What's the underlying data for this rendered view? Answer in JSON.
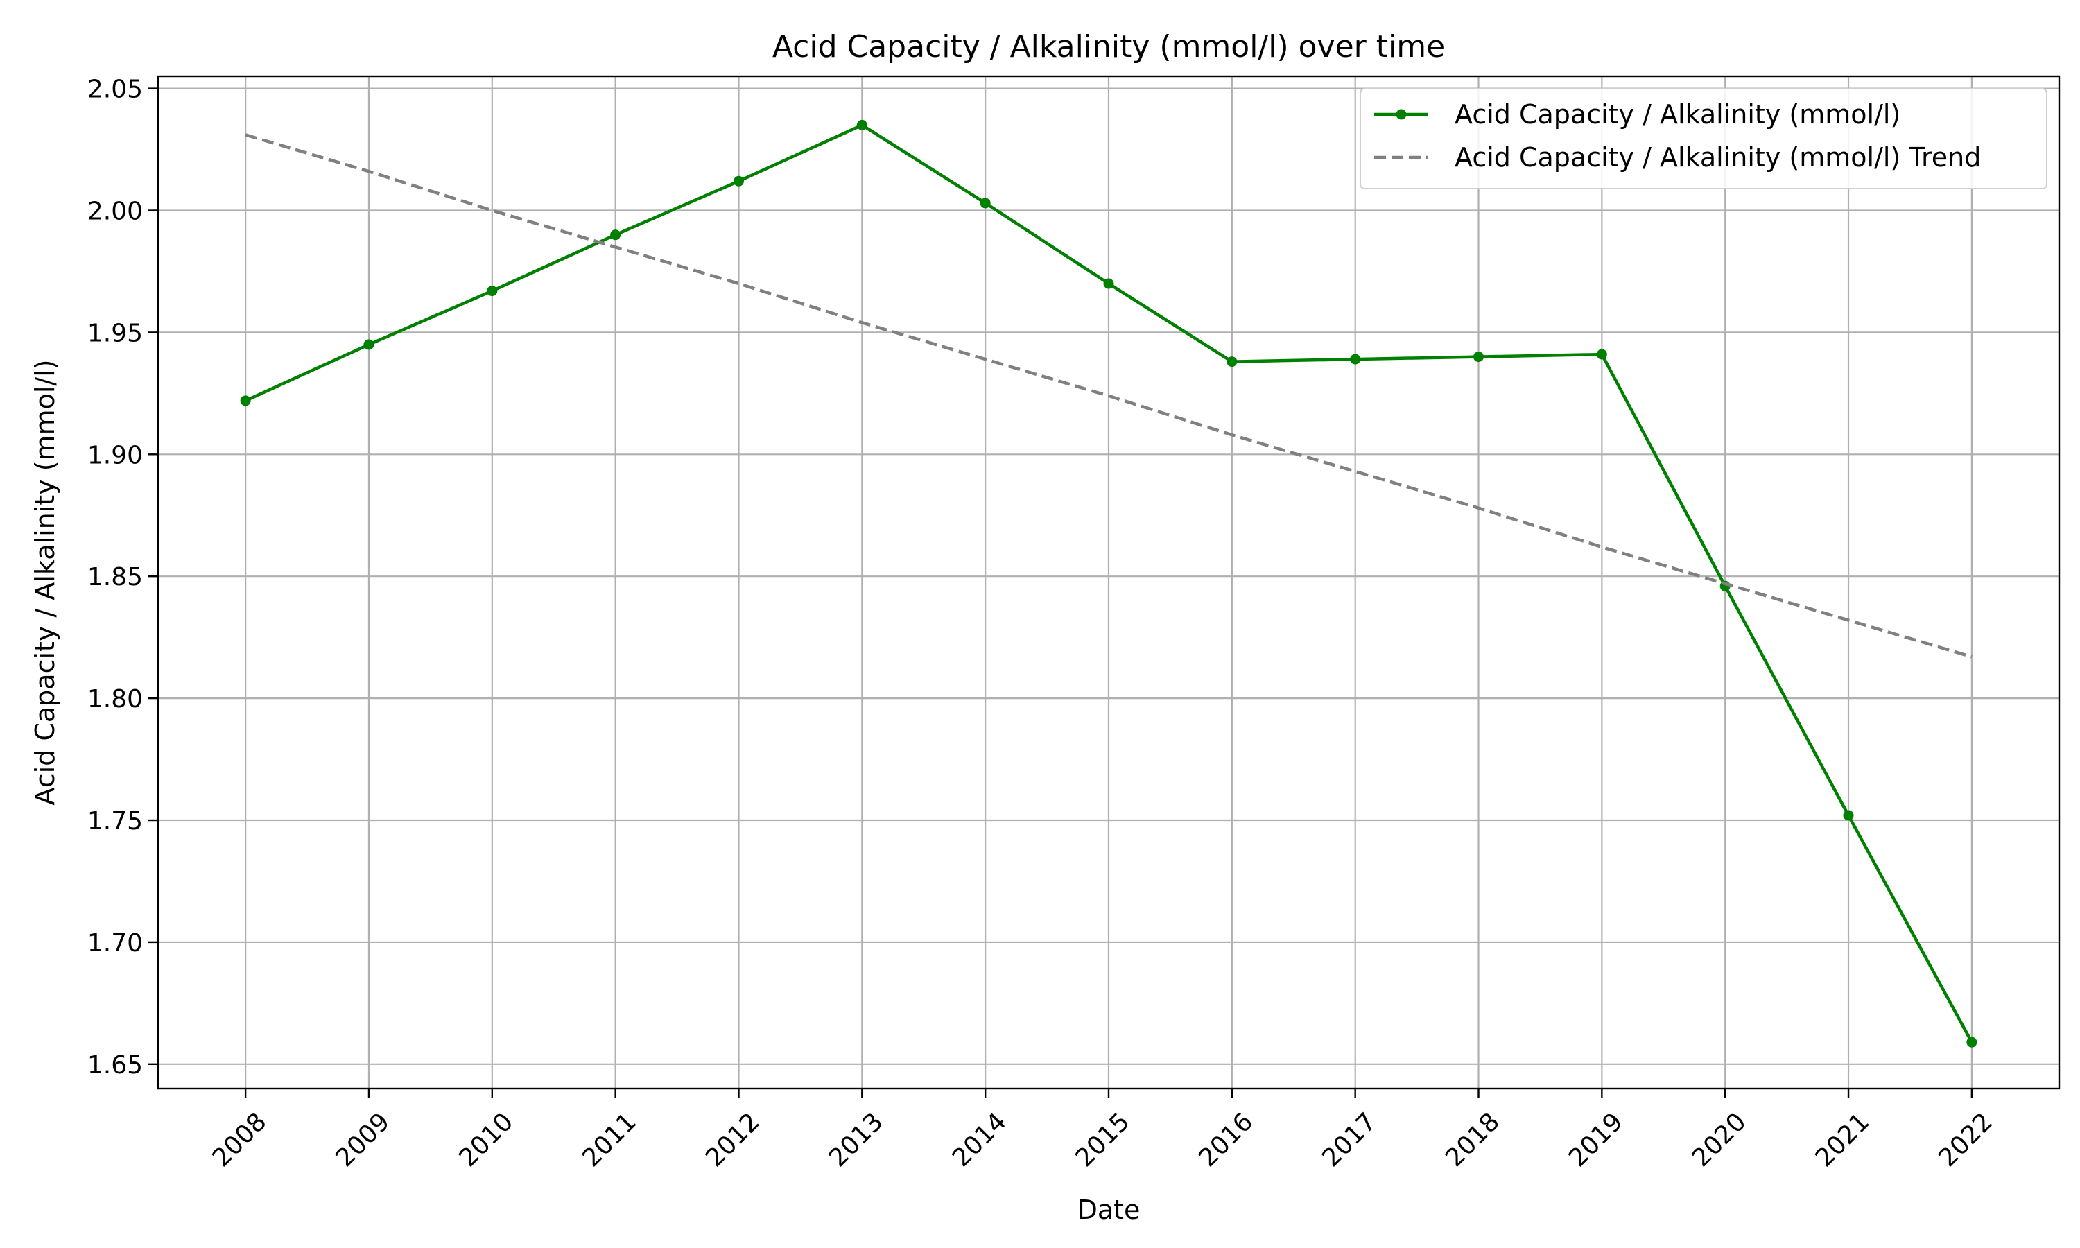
{
  "chart_data": {
    "type": "line",
    "title": "Acid Capacity / Alkalinity (mmol/l) over time",
    "xlabel": "Date",
    "ylabel": "Acid Capacity / Alkalinity (mmol/l)",
    "x": [
      "2008",
      "2009",
      "2010",
      "2011",
      "2012",
      "2013",
      "2014",
      "2015",
      "2016",
      "2017",
      "2018",
      "2019",
      "2020",
      "2021",
      "2022"
    ],
    "ylim": [
      1.64,
      2.055
    ],
    "yticks": [
      1.65,
      1.7,
      1.75,
      1.8,
      1.85,
      1.9,
      1.95,
      2.0,
      2.05
    ],
    "ytick_labels": [
      "1.65",
      "1.70",
      "1.75",
      "1.80",
      "1.85",
      "1.90",
      "1.95",
      "2.00",
      "2.05"
    ],
    "grid": true,
    "legend": "top-right",
    "series": [
      {
        "name": "Acid Capacity / Alkalinity (mmol/l)",
        "color": "#008000",
        "style": "solid",
        "markers": true,
        "values": [
          1.922,
          1.945,
          1.967,
          1.99,
          2.012,
          2.035,
          2.003,
          1.97,
          1.938,
          1.939,
          1.94,
          1.941,
          1.846,
          1.752,
          1.659
        ]
      },
      {
        "name": "Acid Capacity / Alkalinity (mmol/l) Trend",
        "color": "#808080",
        "style": "dashed",
        "markers": false,
        "values": [
          2.031,
          2.016,
          2.0,
          1.985,
          1.97,
          1.954,
          1.939,
          1.924,
          1.908,
          1.893,
          1.878,
          1.862,
          1.847,
          1.832,
          1.817
        ]
      }
    ]
  }
}
